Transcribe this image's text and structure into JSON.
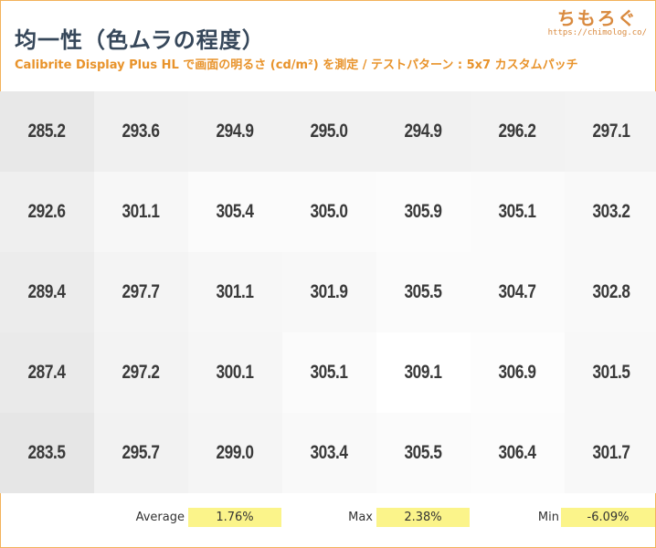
{
  "header": {
    "title": "均一性（色ムラの程度）",
    "subtitle": "Calibrite Display Plus HL で画面の明るさ (cd/m²) を測定 / テストパターン : 5x7 カスタムパッチ",
    "brand_name": "ちもろぐ",
    "brand_url": "https://chimolog.co/"
  },
  "chart_data": {
    "type": "heatmap",
    "rows": 5,
    "cols": 7,
    "values": [
      [
        285.2,
        293.6,
        294.9,
        295.0,
        294.9,
        296.2,
        297.1
      ],
      [
        292.6,
        301.1,
        305.4,
        305.0,
        305.9,
        305.1,
        303.2
      ],
      [
        289.4,
        297.7,
        301.1,
        301.9,
        305.5,
        304.7,
        302.8
      ],
      [
        287.4,
        297.2,
        300.1,
        305.1,
        309.1,
        306.9,
        301.5
      ],
      [
        283.5,
        295.7,
        299.0,
        303.4,
        305.5,
        306.4,
        301.7
      ]
    ],
    "color_scale": {
      "low": "#e6e6e6",
      "high": "#ffffff"
    }
  },
  "stats": {
    "average_label": "Average",
    "average_value": "1.76%",
    "max_label": "Max",
    "max_value": "2.38%",
    "min_label": "Min",
    "min_value": "-6.09%",
    "highlight_color": "#fbf48a"
  }
}
